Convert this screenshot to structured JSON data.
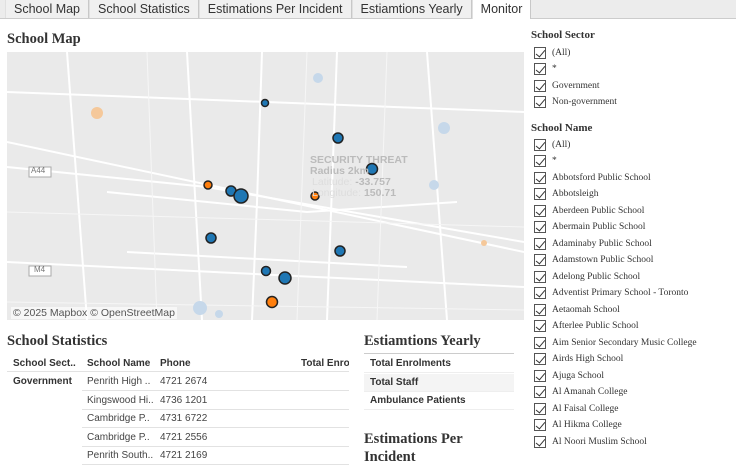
{
  "tabs": [
    "School Map",
    "School Statistics",
    "Estimations Per Incident",
    "Estiamtions Yearly",
    "Monitor"
  ],
  "active_tab": "Monitor",
  "map": {
    "title": "School Map",
    "attribution": "© 2025 Mapbox  © OpenStreetMap",
    "overlay": {
      "line1": "SECURITY THREAT",
      "line2": "Radius 2km",
      "lat_label": "Latitude:",
      "lat": "-33.757",
      "lon_label": "Longitude:",
      "lon": "150.71"
    },
    "road_labels": [
      "A44",
      "M4"
    ],
    "colors": {
      "government": "#1f77b4",
      "non_government": "#ff7f0e"
    }
  },
  "stats": {
    "title": "School Statistics",
    "columns": [
      "School Sect..",
      "School Name",
      "Phone",
      "Total Enro"
    ],
    "sector": "Government",
    "rows": [
      [
        "Penrith High ..",
        "4721 2674"
      ],
      [
        "Kingswood Hi..",
        "4736 1201"
      ],
      [
        "Cambridge P..",
        "4731 6722"
      ],
      [
        "Cambridge P..",
        "4721 2556"
      ],
      [
        "Penrith South..",
        "4721 2169"
      ]
    ]
  },
  "yearly": {
    "title": "Estiamtions Yearly",
    "rows": [
      "Total Enrolments",
      "Total Staff",
      "Ambulance Patients"
    ]
  },
  "per_incident": {
    "title": "Estimations Per Incident"
  },
  "filters": {
    "sector_title": "School Sector",
    "sector_items": [
      "(All)",
      "*",
      "Government",
      "Non-government"
    ],
    "name_title": "School Name",
    "name_items": [
      "(All)",
      "*",
      "Abbotsford Public School",
      "Abbotsleigh",
      "Aberdeen Public School",
      "Abermain Public School",
      "Adaminaby Public School",
      "Adamstown Public School",
      "Adelong Public School",
      "Adventist Primary School - Toronto",
      "Aetaomah School",
      "Afterlee Public School",
      "Aim Senior Secondary Music College",
      "Airds High School",
      "Ajuga School",
      "Al Amanah College",
      "Al Faisal College",
      "Al Hikma College",
      "Al Noori Muslim School"
    ]
  }
}
